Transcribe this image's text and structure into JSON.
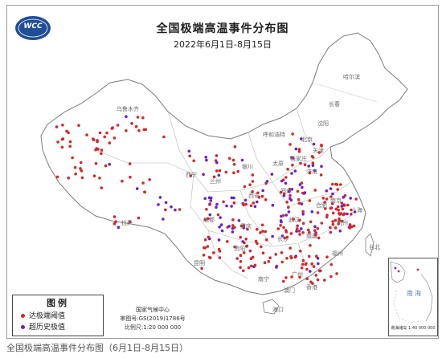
{
  "map": {
    "title": "全国极端高温事件分布图",
    "date_range": "2022年6月1日-8月15日",
    "logo_text": "WCC",
    "colors": {
      "threshold": "#d62728",
      "record": "#6a1fd1",
      "border": "#8a8a8a",
      "sea_label": "#5a7fb0"
    }
  },
  "legend": {
    "title": "图例",
    "items": [
      {
        "label": "达极端阈值",
        "color": "#d62728"
      },
      {
        "label": "超历史极值",
        "color": "#6a1fd1"
      }
    ]
  },
  "credits": {
    "agency": "国家气候中心",
    "map_no": "审图号:GS(2019)1786号",
    "scale": "比例尺:1:20 000 000"
  },
  "inset": {
    "label": "南海",
    "caption": "南海诸岛\n1:40 000 000"
  },
  "cities": [
    "哈尔滨",
    "长春",
    "沈阳",
    "乌鲁木齐",
    "呼和浩特",
    "北京",
    "天津",
    "石家庄",
    "太原",
    "银川",
    "济南",
    "西宁",
    "兰州",
    "郑州",
    "西安",
    "合肥",
    "南京",
    "上海",
    "武汉",
    "成都",
    "拉萨",
    "重庆",
    "长沙",
    "南昌",
    "杭州",
    "福州",
    "贵阳",
    "昆明",
    "广州",
    "南宁",
    "香港",
    "澳门",
    "海口",
    "台北"
  ],
  "caption": "全国极端高温事件分布图（6月1日-8月15日）"
}
